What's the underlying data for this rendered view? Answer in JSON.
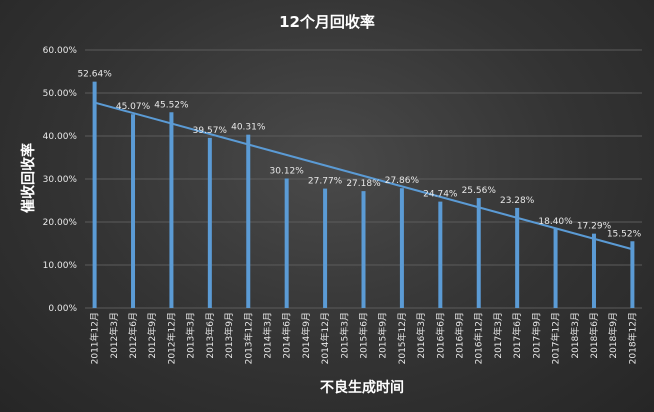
{
  "chart_data": {
    "type": "bar",
    "title": "12个月回收率",
    "xlabel": "不良生成时间",
    "ylabel": "催收回收率",
    "ylim": [
      0,
      60
    ],
    "yticks": [
      "0.00%",
      "10.00%",
      "20.00%",
      "30.00%",
      "40.00%",
      "50.00%",
      "60.00%"
    ],
    "grid": true,
    "bar_color": "#5b9bd5",
    "trendline": "linear",
    "categories": [
      "2011年12月",
      "2012年3月",
      "2012年6月",
      "2012年9月",
      "2012年12月",
      "2013年3月",
      "2013年6月",
      "2013年9月",
      "2013年12月",
      "2014年3月",
      "2014年6月",
      "2014年9月",
      "2014年12月",
      "2015年3月",
      "2015年6月",
      "2015年9月",
      "2015年12月",
      "2016年3月",
      "2016年6月",
      "2016年9月",
      "2016年12月",
      "2017年3月",
      "2017年6月",
      "2017年9月",
      "2017年12月",
      "2018年3月",
      "2018年6月",
      "2018年9月",
      "2018年12月"
    ],
    "values": [
      52.64,
      null,
      45.07,
      null,
      45.52,
      null,
      39.57,
      null,
      40.31,
      null,
      30.12,
      null,
      27.77,
      null,
      27.18,
      null,
      27.86,
      null,
      24.74,
      null,
      25.56,
      null,
      23.28,
      null,
      18.4,
      null,
      17.29,
      null,
      15.52
    ],
    "data_labels": [
      "52.64%",
      "",
      "45.07%",
      "",
      "45.52%",
      "",
      "39.57%",
      "",
      "40.31%",
      "",
      "30.12%",
      "",
      "27.77%",
      "",
      "27.18%",
      "",
      "27.86%",
      "",
      "24.74%",
      "",
      "25.56%",
      "",
      "23.28%",
      "",
      "18.40%",
      "",
      "17.29%",
      "",
      "15.52%"
    ]
  }
}
